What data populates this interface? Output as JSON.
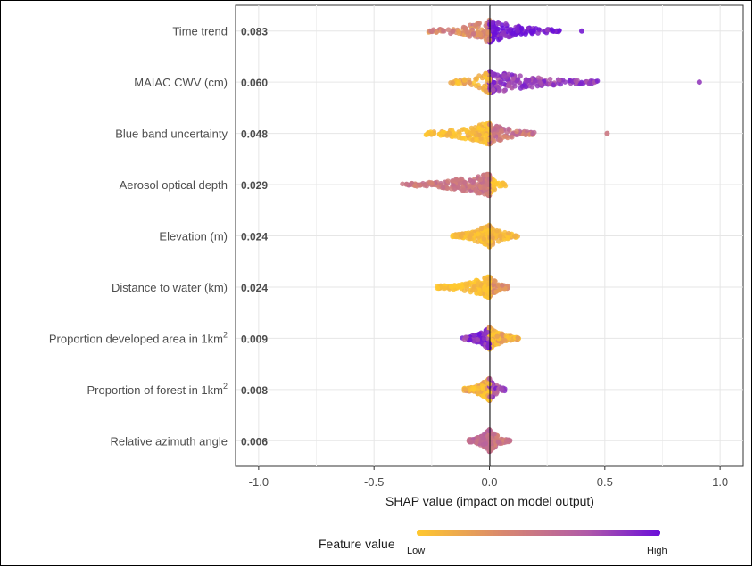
{
  "chart_data": {
    "type": "scatter",
    "subtype": "shap-beeswarm-summary",
    "title": "",
    "xlabel": "SHAP value (impact on model output)",
    "ylabel": "",
    "xlim": [
      -1.1,
      1.1
    ],
    "x_ticks": [
      -1.0,
      -0.5,
      0.0,
      0.5,
      1.0
    ],
    "x_tick_labels": [
      "-1.0",
      "-0.5",
      "0.0",
      "0.5",
      "1.0"
    ],
    "grid": true,
    "legend": {
      "title": "Feature value",
      "low_label": "Low",
      "high_label": "High",
      "position": "bottom",
      "colors": [
        "#ffc82e",
        "#d9886e",
        "#b05aa8",
        "#6a0fd9"
      ]
    },
    "features": [
      {
        "name": "Time trend",
        "superscript": "",
        "mean_abs_shap": "0.083",
        "spread": [
          -0.27,
          0.32
        ],
        "outliers": [
          0.4
        ],
        "colors": {
          "neg": 0.35,
          "pos": 0.95,
          "jitter": 0.15
        }
      },
      {
        "name": "MAIAC CWV (cm)",
        "superscript": "",
        "mean_abs_shap": "0.060",
        "spread": [
          -0.17,
          0.48
        ],
        "outliers": [
          0.91
        ],
        "colors": {
          "neg": 0.1,
          "pos": 0.8,
          "jitter": 0.15
        }
      },
      {
        "name": "Blue band uncertainty",
        "superscript": "",
        "mean_abs_shap": "0.048",
        "spread": [
          -0.29,
          0.2
        ],
        "outliers": [
          0.51
        ],
        "colors": {
          "neg": 0.05,
          "pos": 0.45,
          "jitter": 0.15
        }
      },
      {
        "name": "Aerosol optical depth",
        "superscript": "",
        "mean_abs_shap": "0.029",
        "spread": [
          -0.38,
          0.07
        ],
        "outliers": [],
        "colors": {
          "neg": 0.45,
          "pos": 0.02,
          "jitter": 0.1
        }
      },
      {
        "name": "Elevation (m)",
        "superscript": "",
        "mean_abs_shap": "0.024",
        "spread": [
          -0.16,
          0.13
        ],
        "outliers": [],
        "colors": {
          "neg": 0.05,
          "pos": 0.1,
          "jitter": 0.1
        }
      },
      {
        "name": "Distance to water (km)",
        "superscript": "",
        "mean_abs_shap": "0.024",
        "spread": [
          -0.23,
          0.08
        ],
        "outliers": [],
        "colors": {
          "neg": 0.03,
          "pos": 0.3,
          "jitter": 0.1
        }
      },
      {
        "name": "Proportion developed area in 1km",
        "superscript": "2",
        "mean_abs_shap": "0.009",
        "spread": [
          -0.12,
          0.13
        ],
        "outliers": [],
        "colors": {
          "neg": 0.85,
          "pos": 0.1,
          "jitter": 0.2
        }
      },
      {
        "name": "Proportion of forest in 1km",
        "superscript": "2",
        "mean_abs_shap": "0.008",
        "spread": [
          -0.11,
          0.07
        ],
        "outliers": [],
        "colors": {
          "neg": 0.1,
          "pos": 0.75,
          "jitter": 0.2
        }
      },
      {
        "name": "Relative azimuth angle",
        "superscript": "",
        "mean_abs_shap": "0.006",
        "spread": [
          -0.09,
          0.09
        ],
        "outliers": [],
        "colors": {
          "neg": 0.55,
          "pos": 0.45,
          "jitter": 0.1
        }
      }
    ]
  }
}
